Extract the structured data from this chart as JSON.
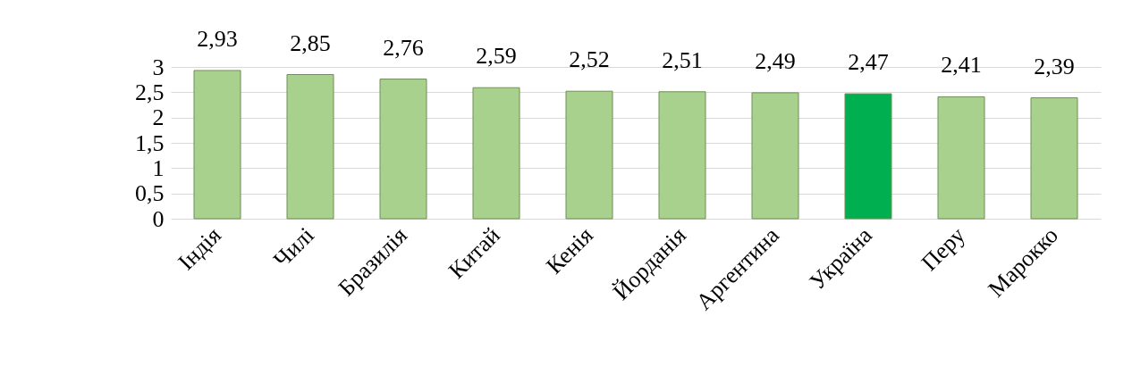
{
  "chart_data": {
    "type": "bar",
    "categories": [
      "Індія",
      "Чилі",
      "Бразилія",
      "Китай",
      "Кенія",
      "Йорданія",
      "Аргентина",
      "Україна",
      "Перу",
      "Марокко"
    ],
    "values": [
      2.93,
      2.85,
      2.76,
      2.59,
      2.52,
      2.51,
      2.49,
      2.47,
      2.41,
      2.39
    ],
    "value_labels": [
      "2,93",
      "2,85",
      "2,76",
      "2,59",
      "2,52",
      "2,51",
      "2,49",
      "2,47",
      "2,41",
      "2,39"
    ],
    "colors": [
      "#a9d18e",
      "#a9d18e",
      "#a9d18e",
      "#a9d18e",
      "#a9d18e",
      "#a9d18e",
      "#a9d18e",
      "#00b050",
      "#a9d18e",
      "#a9d18e"
    ],
    "ylim": [
      0,
      3
    ],
    "yticks": [
      0,
      {
        "value": 0.5,
        "label": "0,5"
      },
      1,
      {
        "value": 1.5,
        "label": "1,5"
      },
      2,
      {
        "value": 2.5,
        "label": "2,5"
      },
      3
    ],
    "grid": true
  }
}
